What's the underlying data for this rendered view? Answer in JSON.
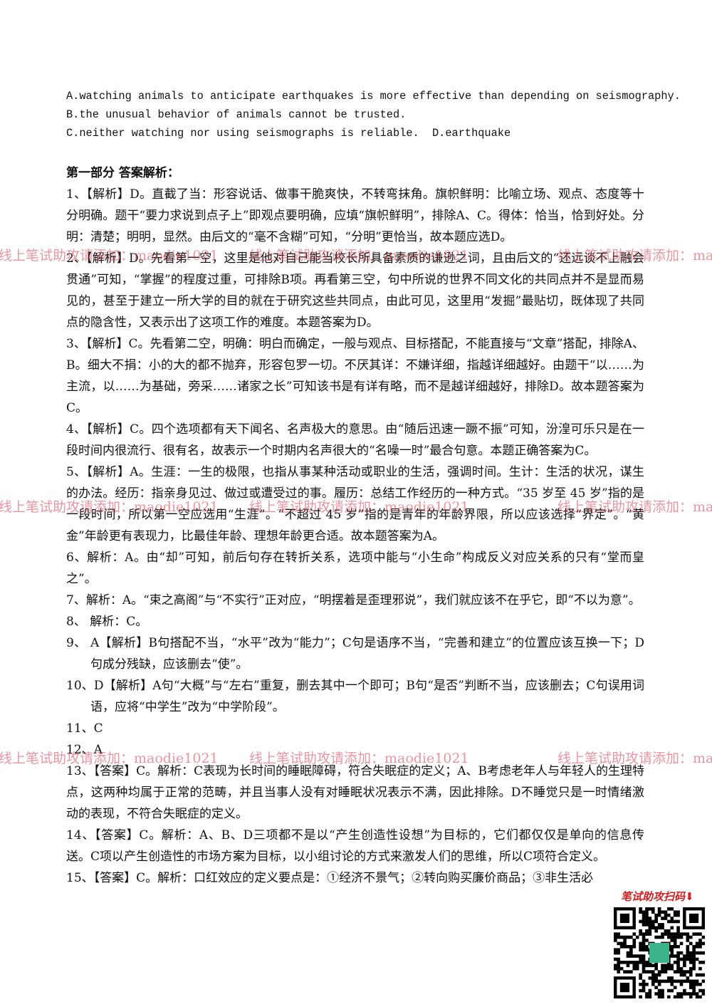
{
  "options": [
    "A.watching animals to anticipate earthquakes is more effective than depending on seismography.",
    "B.the unusual behavior of animals cannot be trusted.",
    "C.neither watching nor using seismographs is reliable.",
    "D.earthquake"
  ],
  "heading": "第一部分 答案解析：",
  "items": [
    "1、【解析】D。直截了当：形容说话、做事干脆爽快，不转弯抹角。旗帜鲜明：比喻立场、观点、态度等十分明确。题干“要力求说到点子上”即观点要明确，应填“旗帜鲜明”，排除A、C。得体：恰当，恰到好处。分明：清楚；明明，显然。由后文的“毫不含糊”可知，“分明”更恰当，故本题应选D。",
    "2、【解析】D。先看第一空，这里是他对自己能当校长所具备素质的谦逊之词，且由后文的“还远谈不上融会贯通”可知，“掌握”的程度过重，可排除B项。再看第三空，句中所说的世界不同文化的共同点并不是显而易见的，甚至于建立一所大学的目的就在于研究这些共同点，由此可见，这里用“发掘”最贴切，既体现了共同点的隐含性，又表示出了这项工作的难度。本题答案为D。",
    "3、【解析】C。先看第二空，明确：明白而确定，一般与观点、目标搭配，不能直接与“文章”搭配，排除A、B。细大不捐：小的大的都不抛弃，形容包罗一切。不厌其详：不嫌详细，指越详细越好。由题干“以……为主流，以……为基础，旁采……诸家之长”可知该书是有详有略，而不是越详细越好，排除D。故本题答案为C。",
    "4、【解析】C。四个选项都有天下闻名、名声极大的意思。由“随后迅速一蹶不振”可知，汾湟可乐只是在一段时间内很流行、很有名，故表示一个时期内名声很大的“名噪一时”最合句意。本题正确答案为C。",
    "5、【解析】A。生涯：一生的极限，也指从事某种活动或职业的生活，强调时间。生计：生活的状况，谋生的办法。经历：指亲身见过、做过或遭受过的事。履历：总结工作经历的一种方式。“35 岁至 45 岁”指的是一段时间，所以第一空应选用“生涯”。“不超过 45 岁”指的是青年的年龄界限，所以应该选择“界定”。“黄金”年龄更有表现力，比最佳年龄、理想年龄更合适。故本题答案为A。",
    "6、解析：A。由“却”可知，前后句存在转折关系，选项中能与“小生命”构成反义对应关系的只有“堂而皇之”。",
    "7、解析：A。“束之高阁”与“不实行”正对应，“明摆着是歪理邪说”，我们就应该不在乎它，即“不以为意”。",
    "8、 解析：C。",
    "9、 A【解析】B句搭配不当，“水平”改为“能力”；C句是语序不当，“完善和建立”的位置应该互换一下；D句成分残缺，应该删去“使”。",
    "10、D【解析】A句“大概”与“左右”重复，删去其中一个即可；B句“是否”判断不当，应该删去；C句误用词语，应将“中学生”改为“中学阶段”。",
    "11、C",
    "12、A",
    "13、【答案】C。解析：C表现为长时间的睡眠障碍，符合失眠症的定义；A、B考虑老年人与年轻人的生理特点，这两种均属于正常的范畴，并且当事人没有对睡眠状况表示不满，因此排除。D不睡觉只是一时情绪激动的表现，不符合失眠症的定义。",
    "14、【答案】C。解析：A、B、D三项都不是以“产生创造性设想”为目标的，它们都仅仅是单向的信息传送。C项以产生创造性的市场方案为目标，以小组讨论的方式来激发人们的思维，所以C项符合定义。",
    "15、【答案】C。解析：口红效应的定义要点是：①经济不景气；②转向购买廉价商品；③非生活必"
  ],
  "watermark": "线上笔试助攻请添加：maodie1021",
  "qr_label": "笔试助攻扫码⬇"
}
